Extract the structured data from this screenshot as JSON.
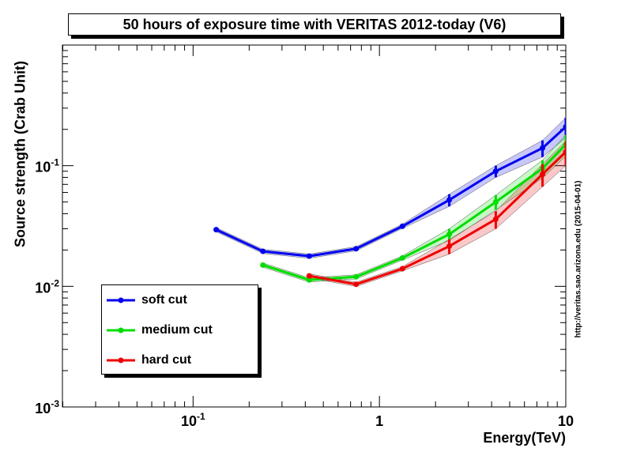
{
  "title": "50 hours of exposure time with VERITAS 2012-today (V6)",
  "watermark": "http://veritas.sao.arizona.edu (2015-04-01)",
  "chart_data": {
    "type": "line",
    "title": "50 hours of exposure time with VERITAS 2012-today (V6)",
    "xlabel": "Energy(TeV)",
    "ylabel": "Source strength (Crab Unit)",
    "x_scale": "log",
    "y_scale": "log",
    "xlim": [
      0.0199,
      10
    ],
    "ylim": [
      0.001,
      1
    ],
    "x_tick_labels": [
      {
        "value": 0.1,
        "label": "10",
        "exp": "-1"
      },
      {
        "value": 1,
        "label": "1",
        "exp": ""
      },
      {
        "value": 10,
        "label": "10",
        "exp": ""
      }
    ],
    "y_tick_labels": [
      {
        "value": 0.001,
        "label": "10",
        "exp": "-3"
      },
      {
        "value": 0.01,
        "label": "10",
        "exp": "-2"
      },
      {
        "value": 0.1,
        "label": "10",
        "exp": "-1"
      }
    ],
    "legend_position": "bottom-left",
    "series": [
      {
        "name": "soft cut",
        "color": "#0000ee",
        "x": [
          0.133,
          0.237,
          0.42,
          0.75,
          1.33,
          2.37,
          4.21,
          7.5,
          10
        ],
        "y": [
          0.0295,
          0.0195,
          0.0178,
          0.0205,
          0.0315,
          0.052,
          0.09,
          0.14,
          0.21
        ],
        "err_lo": [
          0,
          0,
          0,
          0,
          0,
          0.006,
          0.01,
          0.022,
          0.04
        ],
        "err_hi": [
          0,
          0,
          0,
          0,
          0,
          0.006,
          0.01,
          0.022,
          0.04
        ]
      },
      {
        "name": "medium cut",
        "color": "#00dd00",
        "x": [
          0.237,
          0.42,
          0.75,
          1.33,
          2.37,
          4.21,
          7.5,
          10
        ],
        "y": [
          0.015,
          0.0113,
          0.012,
          0.0172,
          0.027,
          0.05,
          0.095,
          0.15
        ],
        "err_lo": [
          0,
          0,
          0,
          0,
          0.003,
          0.007,
          0.016,
          0.03
        ],
        "err_hi": [
          0,
          0,
          0,
          0,
          0.003,
          0.007,
          0.016,
          0.03
        ]
      },
      {
        "name": "hard cut",
        "color": "#ee0000",
        "x": [
          0.42,
          0.75,
          1.33,
          2.37,
          4.21,
          7.5,
          10
        ],
        "y": [
          0.0122,
          0.0104,
          0.014,
          0.0215,
          0.036,
          0.085,
          0.13
        ],
        "err_lo": [
          0,
          0,
          0,
          0.003,
          0.006,
          0.018,
          0.03
        ],
        "err_hi": [
          0,
          0,
          0,
          0.003,
          0.006,
          0.018,
          0.03
        ]
      }
    ],
    "grid": false
  }
}
